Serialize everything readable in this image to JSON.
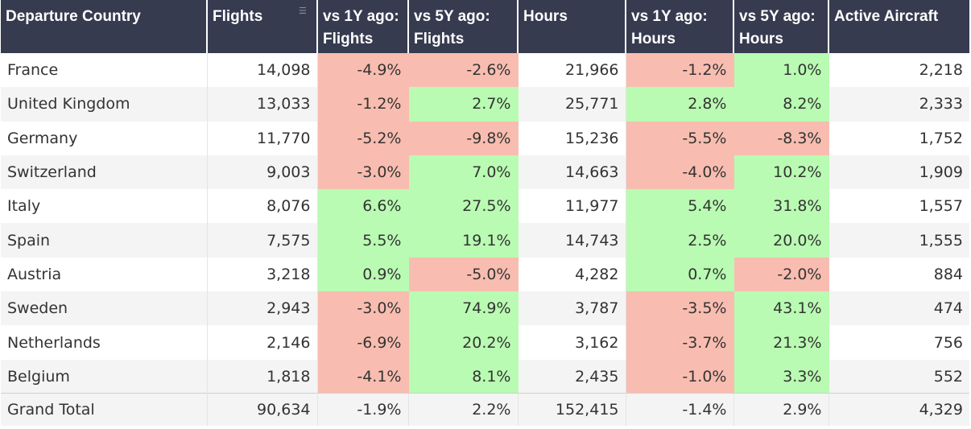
{
  "table": {
    "headers": [
      "Departure Country",
      "Flights",
      "vs 1Y ago: Flights",
      "vs 5Y ago: Flights",
      "Hours",
      "vs 1Y ago: Hours",
      "vs 5Y ago: Hours",
      "Active Aircraft"
    ],
    "sort_icon": "sort-icon",
    "colors": {
      "header_bg": "#363b4f",
      "negative_bg": "#f8bdb0",
      "positive_bg": "#b9fbb2"
    },
    "rows": [
      [
        "France",
        "14,098",
        "-4.9%",
        "-2.6%",
        "21,966",
        "-1.2%",
        "1.0%",
        "2,218"
      ],
      [
        "United Kingdom",
        "13,033",
        "-1.2%",
        "2.7%",
        "25,771",
        "2.8%",
        "8.2%",
        "2,333"
      ],
      [
        "Germany",
        "11,770",
        "-5.2%",
        "-9.8%",
        "15,236",
        "-5.5%",
        "-8.3%",
        "1,752"
      ],
      [
        "Switzerland",
        "9,003",
        "-3.0%",
        "7.0%",
        "14,663",
        "-4.0%",
        "10.2%",
        "1,909"
      ],
      [
        "Italy",
        "8,076",
        "6.6%",
        "27.5%",
        "11,977",
        "5.4%",
        "31.8%",
        "1,557"
      ],
      [
        "Spain",
        "7,575",
        "5.5%",
        "19.1%",
        "14,743",
        "2.5%",
        "20.0%",
        "1,555"
      ],
      [
        "Austria",
        "3,218",
        "0.9%",
        "-5.0%",
        "4,282",
        "0.7%",
        "-2.0%",
        "884"
      ],
      [
        "Sweden",
        "2,943",
        "-3.0%",
        "74.9%",
        "3,787",
        "-3.5%",
        "43.1%",
        "474"
      ],
      [
        "Netherlands",
        "2,146",
        "-6.9%",
        "20.2%",
        "3,162",
        "-3.7%",
        "21.3%",
        "756"
      ],
      [
        "Belgium",
        "1,818",
        "-4.1%",
        "8.1%",
        "2,435",
        "-1.0%",
        "3.3%",
        "552"
      ]
    ],
    "total": [
      "Grand Total",
      "90,634",
      "-1.9%",
      "2.2%",
      "152,415",
      "-1.4%",
      "2.9%",
      "4,329"
    ]
  },
  "chart_data": {
    "type": "table",
    "columns": [
      "Departure Country",
      "Flights",
      "vs 1Y ago: Flights",
      "vs 5Y ago: Flights",
      "Hours",
      "vs 1Y ago: Hours",
      "vs 5Y ago: Hours",
      "Active Aircraft"
    ],
    "rows": [
      {
        "country": "France",
        "flights": 14098,
        "flights_vs_1y": -4.9,
        "flights_vs_5y": -2.6,
        "hours": 21966,
        "hours_vs_1y": -1.2,
        "hours_vs_5y": 1.0,
        "active_aircraft": 2218
      },
      {
        "country": "United Kingdom",
        "flights": 13033,
        "flights_vs_1y": -1.2,
        "flights_vs_5y": 2.7,
        "hours": 25771,
        "hours_vs_1y": 2.8,
        "hours_vs_5y": 8.2,
        "active_aircraft": 2333
      },
      {
        "country": "Germany",
        "flights": 11770,
        "flights_vs_1y": -5.2,
        "flights_vs_5y": -9.8,
        "hours": 15236,
        "hours_vs_1y": -5.5,
        "hours_vs_5y": -8.3,
        "active_aircraft": 1752
      },
      {
        "country": "Switzerland",
        "flights": 9003,
        "flights_vs_1y": -3.0,
        "flights_vs_5y": 7.0,
        "hours": 14663,
        "hours_vs_1y": -4.0,
        "hours_vs_5y": 10.2,
        "active_aircraft": 1909
      },
      {
        "country": "Italy",
        "flights": 8076,
        "flights_vs_1y": 6.6,
        "flights_vs_5y": 27.5,
        "hours": 11977,
        "hours_vs_1y": 5.4,
        "hours_vs_5y": 31.8,
        "active_aircraft": 1557
      },
      {
        "country": "Spain",
        "flights": 7575,
        "flights_vs_1y": 5.5,
        "flights_vs_5y": 19.1,
        "hours": 14743,
        "hours_vs_1y": 2.5,
        "hours_vs_5y": 20.0,
        "active_aircraft": 1555
      },
      {
        "country": "Austria",
        "flights": 3218,
        "flights_vs_1y": 0.9,
        "flights_vs_5y": -5.0,
        "hours": 4282,
        "hours_vs_1y": 0.7,
        "hours_vs_5y": -2.0,
        "active_aircraft": 884
      },
      {
        "country": "Sweden",
        "flights": 2943,
        "flights_vs_1y": -3.0,
        "flights_vs_5y": 74.9,
        "hours": 3787,
        "hours_vs_1y": -3.5,
        "hours_vs_5y": 43.1,
        "active_aircraft": 474
      },
      {
        "country": "Netherlands",
        "flights": 2146,
        "flights_vs_1y": -6.9,
        "flights_vs_5y": 20.2,
        "hours": 3162,
        "hours_vs_1y": -3.7,
        "hours_vs_5y": 21.3,
        "active_aircraft": 756
      },
      {
        "country": "Belgium",
        "flights": 1818,
        "flights_vs_1y": -4.1,
        "flights_vs_5y": 8.1,
        "hours": 2435,
        "hours_vs_1y": -1.0,
        "hours_vs_5y": 3.3,
        "active_aircraft": 552
      }
    ],
    "total": {
      "country": "Grand Total",
      "flights": 90634,
      "flights_vs_1y": -1.9,
      "flights_vs_5y": 2.2,
      "hours": 152415,
      "hours_vs_1y": -1.4,
      "hours_vs_5y": 2.9,
      "active_aircraft": 4329
    }
  }
}
